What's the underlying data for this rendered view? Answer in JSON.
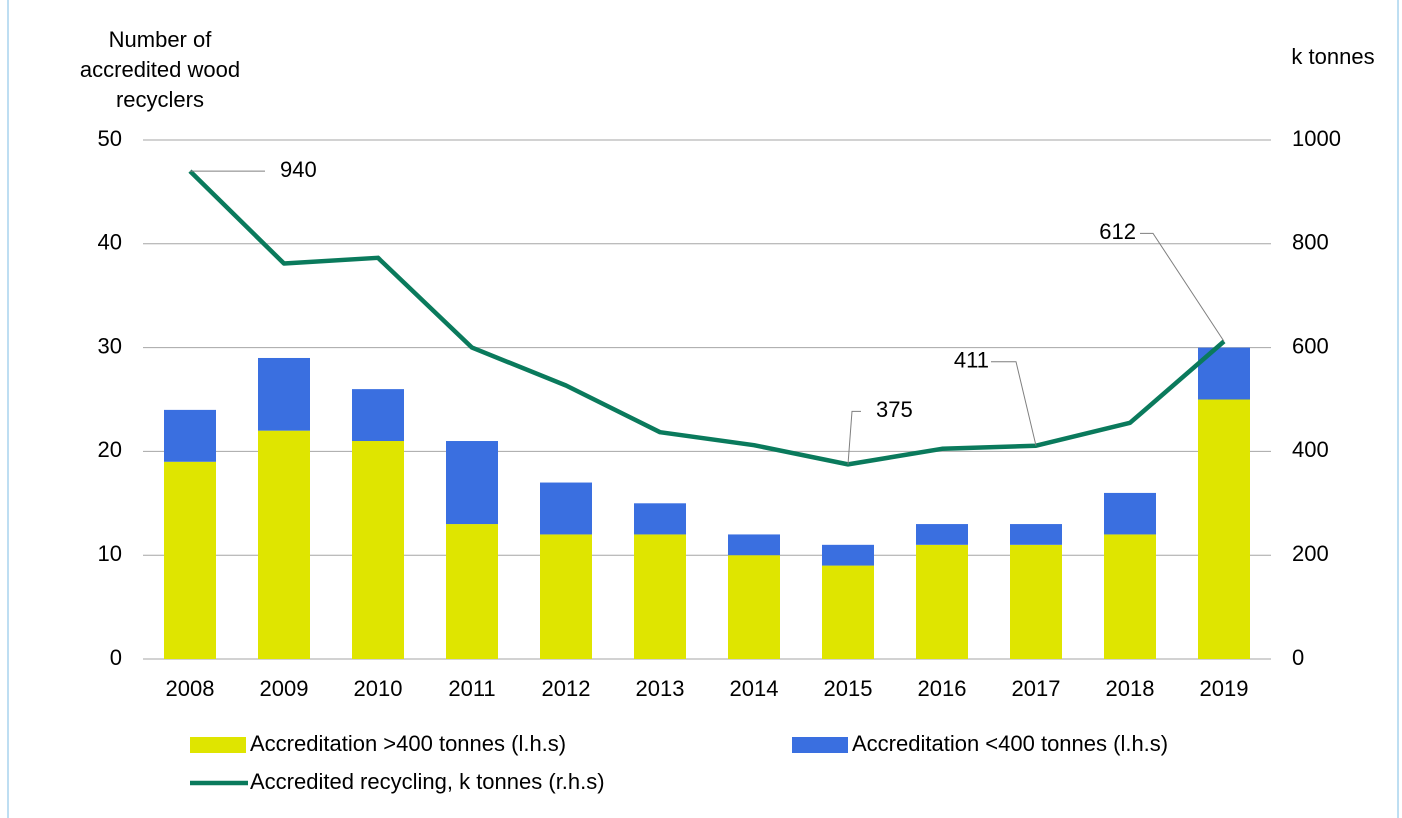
{
  "chart_data": {
    "type": "bar",
    "y_label": [
      "Number of",
      "accredited wood",
      "recyclers"
    ],
    "y2_label": "k tonnes",
    "categories": [
      "2008",
      "2009",
      "2010",
      "2011",
      "2012",
      "2013",
      "2014",
      "2015",
      "2016",
      "2017",
      "2018",
      "2019"
    ],
    "series": [
      {
        "name": "Accreditation >400 tonnes (l.h.s)",
        "type": "bar",
        "color": "#dfe500",
        "values": [
          19,
          22,
          21,
          13,
          12,
          12,
          10,
          9,
          11,
          11,
          12,
          25
        ]
      },
      {
        "name": "Accreditation <400 tonnes (l.h.s)",
        "type": "bar",
        "color": "#3a6fe0",
        "values": [
          5,
          7,
          5,
          8,
          5,
          3,
          2,
          2,
          2,
          2,
          4,
          5
        ]
      },
      {
        "name": "Accredited recycling, k tonnes (r.h.s)",
        "type": "line",
        "axis": "y2",
        "color": "#0a7a5c",
        "values": [
          940,
          762,
          773,
          600,
          527,
          437,
          412,
          375,
          405,
          411,
          455,
          612
        ],
        "value_labels": [
          "940",
          null,
          null,
          null,
          null,
          null,
          null,
          "375",
          null,
          "411",
          null,
          "612"
        ]
      }
    ],
    "stacked": true,
    "ylim": [
      0,
      50
    ],
    "yticks": [
      0,
      10,
      20,
      30,
      40,
      50
    ],
    "y2lim": [
      0,
      1000
    ],
    "y2ticks": [
      0,
      200,
      400,
      600,
      800,
      1000
    ],
    "grid": true
  }
}
